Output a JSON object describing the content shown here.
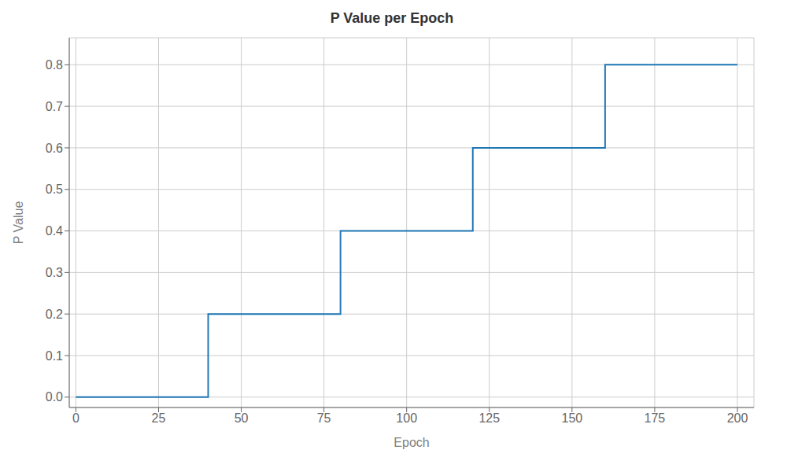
{
  "chart_data": {
    "type": "line",
    "title": "P Value per Epoch",
    "xlabel": "Epoch",
    "ylabel": "P Value",
    "x": [
      0,
      40,
      40,
      80,
      80,
      120,
      120,
      160,
      160,
      200
    ],
    "values": [
      0.0,
      0.0,
      0.2,
      0.2,
      0.4,
      0.4,
      0.6,
      0.6,
      0.8,
      0.8
    ],
    "color": "#1f77b4",
    "xlim": [
      -2,
      205
    ],
    "ylim": [
      -0.025,
      0.865
    ],
    "xticks": [
      0,
      25,
      50,
      75,
      100,
      125,
      150,
      175,
      200
    ],
    "yticks": [
      {
        "value": 0.0,
        "label": "0.0"
      },
      0.1,
      0.2,
      0.3,
      0.4,
      0.5,
      0.6,
      0.7,
      0.8
    ],
    "grid": true
  }
}
